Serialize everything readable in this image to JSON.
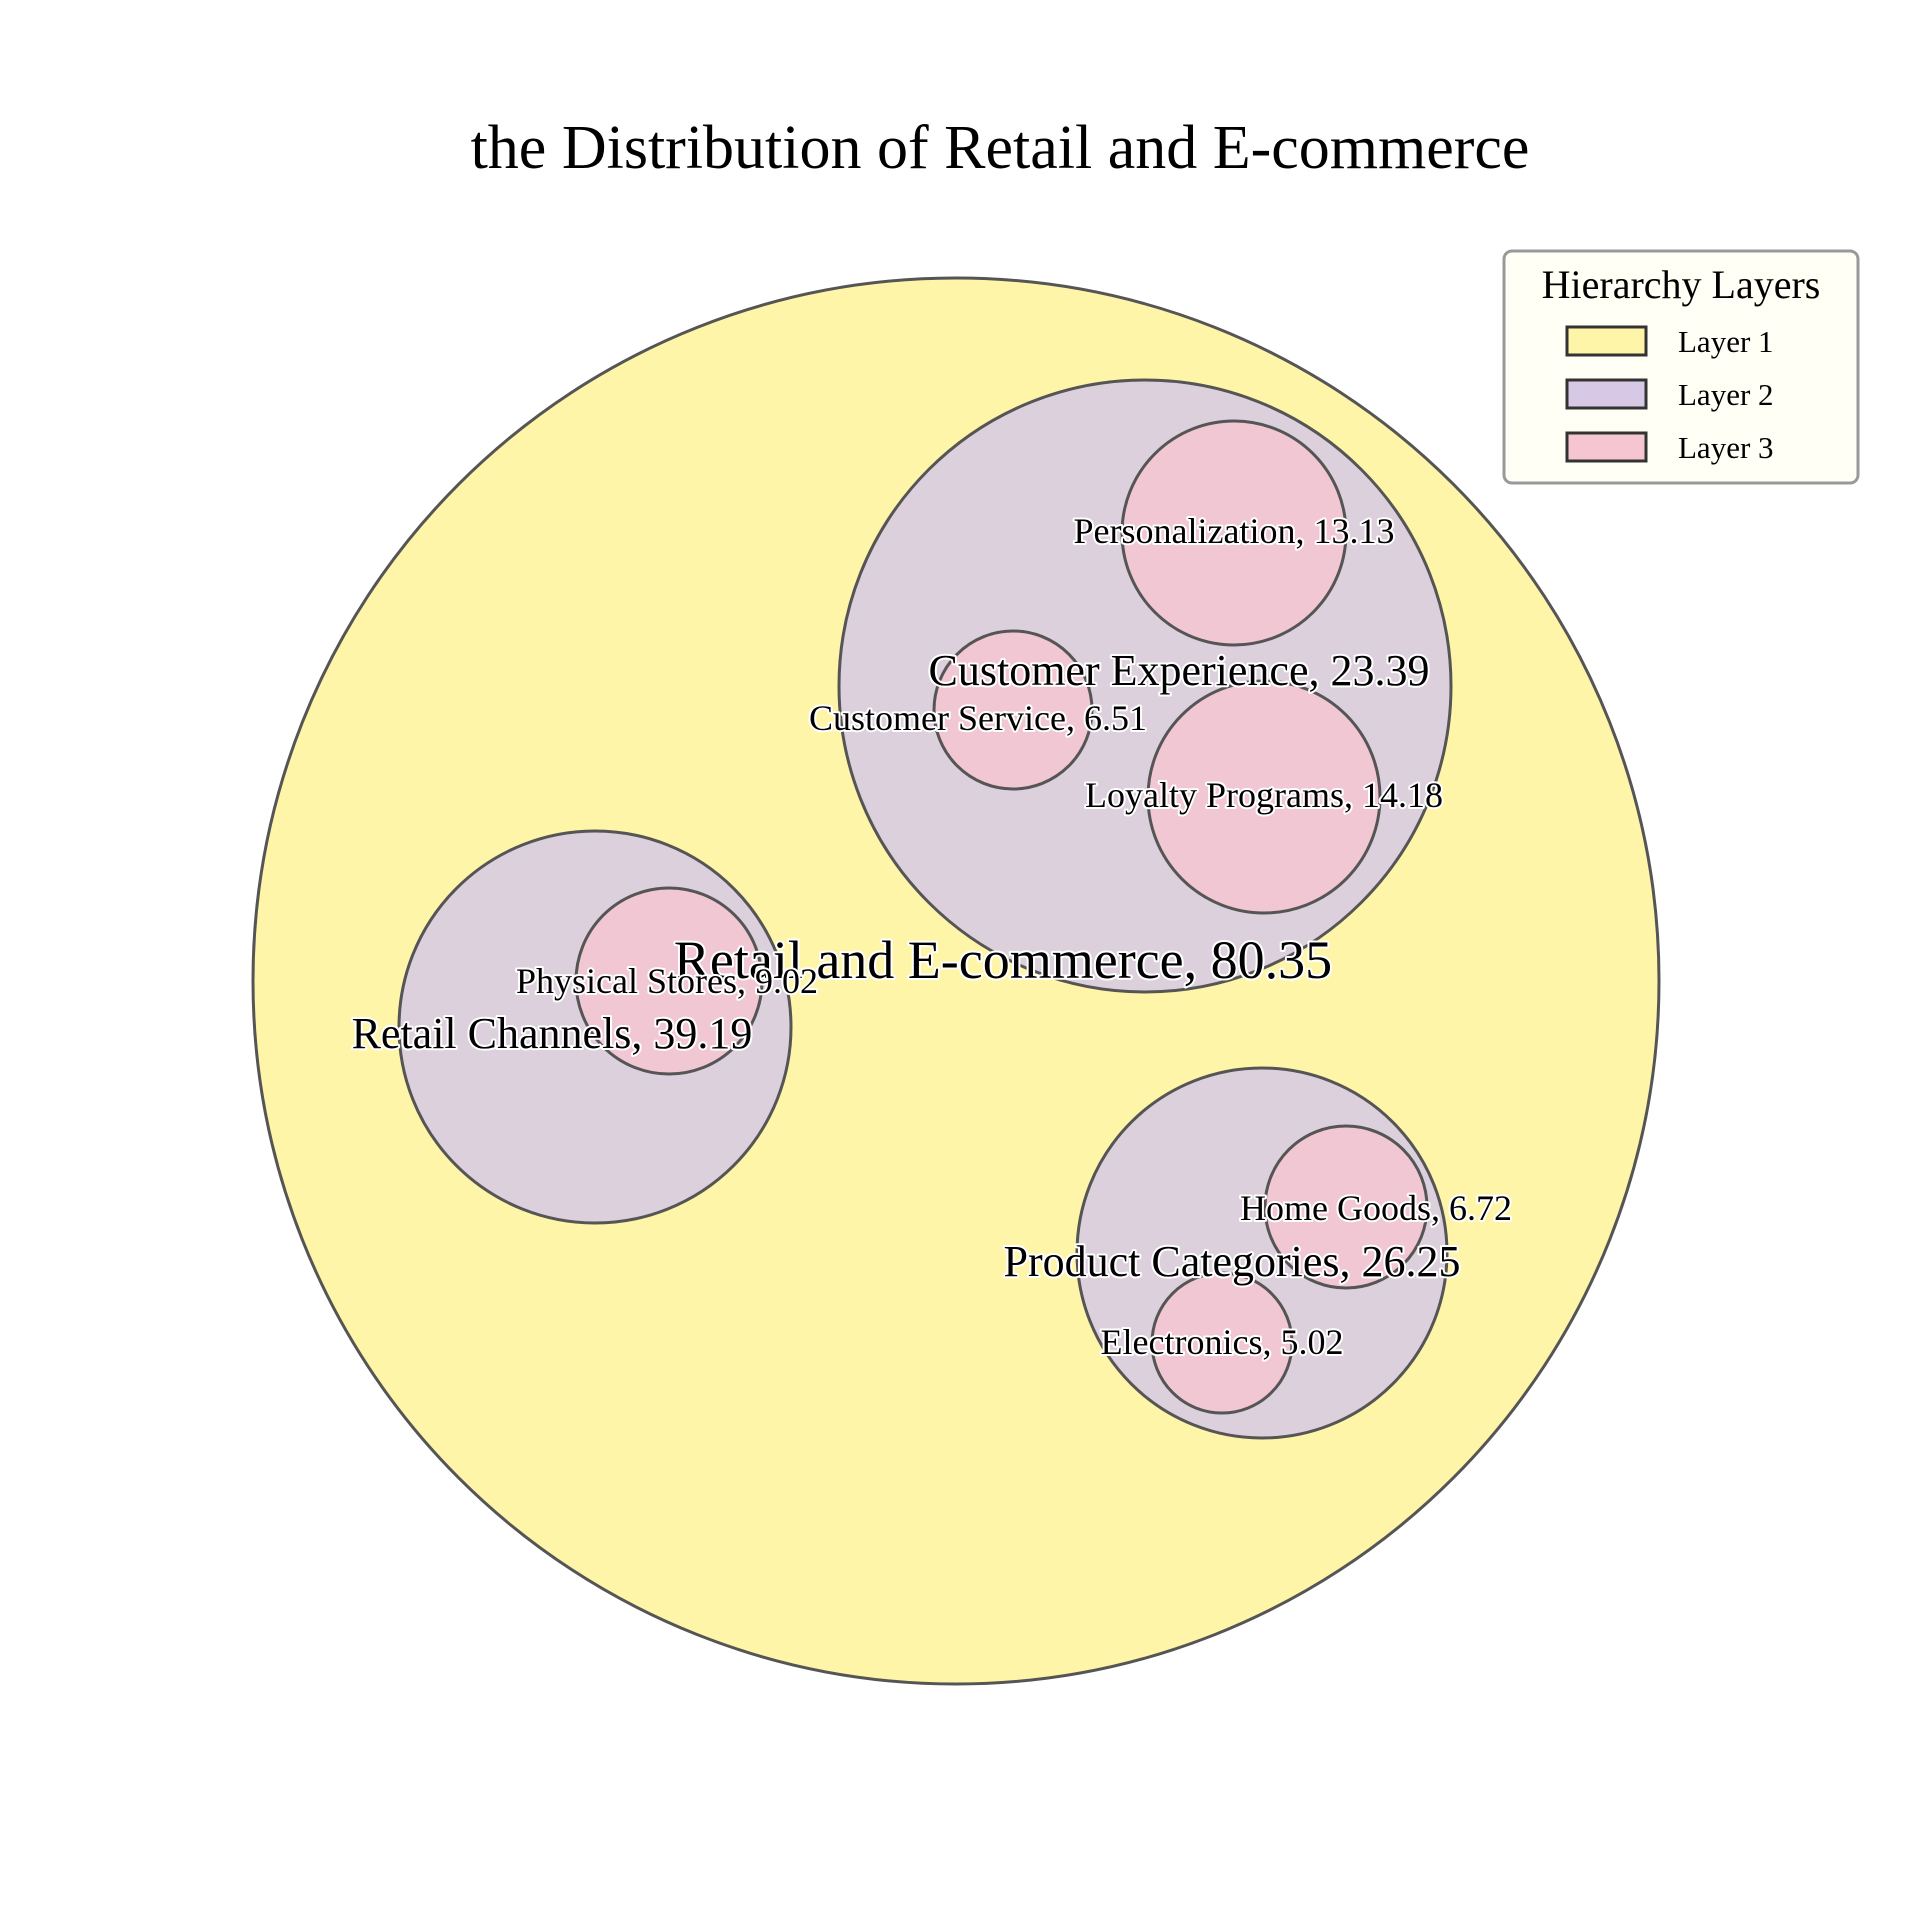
{
  "chart_data": {
    "type": "bubble",
    "title": "the Distribution of Retail and E-commerce",
    "legend": {
      "title": "Hierarchy Layers",
      "placement": "top-right",
      "entries": [
        {
          "label": "Layer 1",
          "color": "#fff5a8"
        },
        {
          "label": "Layer 2",
          "color": "#d7c9e6"
        },
        {
          "label": "Layer 3",
          "color": "#f6c5d2"
        }
      ]
    },
    "nodes": [
      {
        "name": "Retail and E-commerce",
        "value": 80.35,
        "layer": 1,
        "label": "Retail and E-commerce, 80.35"
      },
      {
        "name": "Customer Experience",
        "value": 23.39,
        "layer": 2,
        "parent": "Retail and E-commerce",
        "label": "Customer Experience, 23.39"
      },
      {
        "name": "Retail Channels",
        "value": 39.19,
        "layer": 2,
        "parent": "Retail and E-commerce",
        "label": "Retail Channels, 39.19"
      },
      {
        "name": "Product Categories",
        "value": 26.25,
        "layer": 2,
        "parent": "Retail and E-commerce",
        "label": "Product Categories, 26.25"
      },
      {
        "name": "Personalization",
        "value": 13.13,
        "layer": 3,
        "parent": "Customer Experience",
        "label": "Personalization, 13.13"
      },
      {
        "name": "Customer Service",
        "value": 6.51,
        "layer": 3,
        "parent": "Customer Experience",
        "label": "Customer Service, 6.51"
      },
      {
        "name": "Loyalty Programs",
        "value": 14.18,
        "layer": 3,
        "parent": "Customer Experience",
        "label": "Loyalty Programs, 14.18"
      },
      {
        "name": "Physical Stores",
        "value": 9.02,
        "layer": 3,
        "parent": "Retail Channels",
        "label": "Physical Stores, 9.02"
      },
      {
        "name": "Home Goods",
        "value": 6.72,
        "layer": 3,
        "parent": "Product Categories",
        "label": "Home Goods, 6.72"
      },
      {
        "name": "Electronics",
        "value": 5.02,
        "layer": 3,
        "parent": "Product Categories",
        "label": "Electronics, 5.02"
      }
    ],
    "colors": {
      "stroke": "#555555",
      "legend_border": "#999999",
      "legend_bg": "#fffff5"
    }
  }
}
